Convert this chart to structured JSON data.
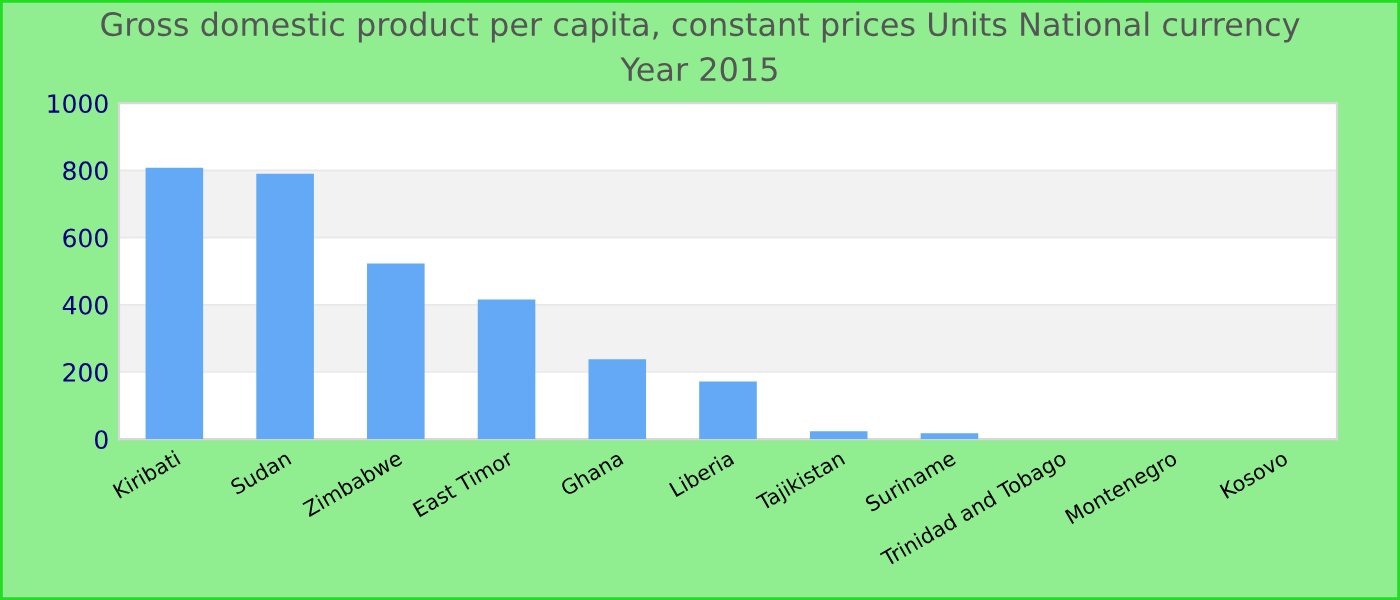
{
  "chart_data": {
    "type": "bar",
    "title": "Gross domestic product per capita, constant prices Units National currency",
    "subtitle": "Year 2015",
    "categories": [
      "Kiribati",
      "Sudan",
      "Zimbabwe",
      "East Timor",
      "Ghana",
      "Liberia",
      "Tajikistan",
      "Suriname",
      "Trinidad and Tobago",
      "Montenegro",
      "Kosovo"
    ],
    "values": [
      808,
      790,
      523,
      416,
      238,
      172,
      24,
      18,
      null,
      null,
      null
    ],
    "color": "#63a9f5",
    "ylim": [
      0,
      1000
    ],
    "yticks": [
      0,
      200,
      400,
      600,
      800,
      1000
    ],
    "grid": "y"
  }
}
